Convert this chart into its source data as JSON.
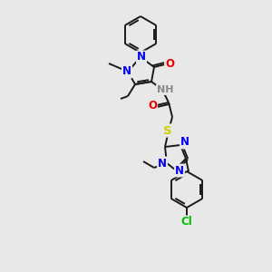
{
  "bg_color": "#e8e8e8",
  "bond_color": "#1a1a1a",
  "atom_colors": {
    "N": "#0000ee",
    "O": "#ee0000",
    "S": "#cccc00",
    "Cl": "#00bb00",
    "H": "#888888",
    "C": "#1a1a1a"
  },
  "figsize": [
    3.0,
    3.0
  ],
  "dpi": 100
}
